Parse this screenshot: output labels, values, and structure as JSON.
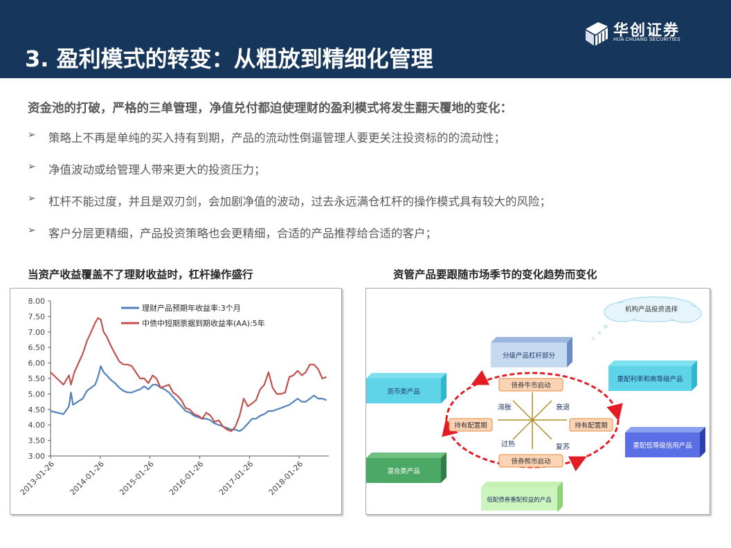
{
  "header": {
    "title": "3. 盈利模式的转变：从粗放到精细化管理",
    "logo_cn": "华创证券",
    "logo_en": "HUA CHUANG SECURITIES",
    "bg_color": "#16365c"
  },
  "intro": "资金池的打破，严格的三单管理，净值兑付都迫使理财的盈利模式将发生翻天覆地的变化：",
  "bullet_marker": "➢",
  "bullets": [
    "策略上不再是单纯的买入持有到期，产品的流动性倒逼管理人要更关注投资标的的流动性；",
    "净值波动或给管理人带来更大的投资压力；",
    "杠杆不能过度，并且是双刃剑，会加剧净值的波动，过去永远满仓杠杆的操作模式具有较大的风险；",
    "客户分层更精细，产品投资策略也会更精细，合适的产品推荐给合适的客户；"
  ],
  "left_panel_title": "当资产收益覆盖不了理财收益时，杠杆操作盛行",
  "right_panel_title": "资管产品要跟随市场季节的变化趋势而变化",
  "chart_data": {
    "type": "line",
    "title": "",
    "ylim": [
      3.0,
      8.0
    ],
    "y_ticks": [
      "8.00",
      "7.50",
      "7.00",
      "6.50",
      "6.00",
      "5.50",
      "5.00",
      "4.50",
      "4.00",
      "3.50",
      "3.00"
    ],
    "x_ticks": [
      "2013-01-26",
      "2014-01-26",
      "2015-01-26",
      "2016-01-26",
      "2017-01-26",
      "2018-01-26"
    ],
    "x_range": [
      "2013-01-26",
      "2018-09-01"
    ],
    "legend_position": "top-left",
    "grid": false,
    "series": [
      {
        "name": "理财产品预期年收益率:3个月",
        "color": "#4f81bd",
        "x": [
          "2013-01-26",
          "2013-03-15",
          "2013-05-01",
          "2013-06-10",
          "2013-06-25",
          "2013-07-10",
          "2013-08-15",
          "2013-09-20",
          "2013-10-20",
          "2013-11-20",
          "2013-12-20",
          "2014-01-10",
          "2014-01-30",
          "2014-02-20",
          "2014-03-15",
          "2014-04-15",
          "2014-05-15",
          "2014-06-15",
          "2014-07-15",
          "2014-08-15",
          "2014-09-15",
          "2014-10-15",
          "2014-11-15",
          "2014-12-15",
          "2015-01-15",
          "2015-02-15",
          "2015-03-15",
          "2015-04-15",
          "2015-05-15",
          "2015-06-15",
          "2015-07-15",
          "2015-08-15",
          "2015-09-15",
          "2015-10-15",
          "2015-11-15",
          "2015-12-15",
          "2016-01-15",
          "2016-02-15",
          "2016-03-15",
          "2016-04-15",
          "2016-05-15",
          "2016-06-15",
          "2016-07-15",
          "2016-08-15",
          "2016-09-15",
          "2016-10-15",
          "2016-11-15",
          "2016-12-15",
          "2017-01-15",
          "2017-02-15",
          "2017-03-15",
          "2017-04-15",
          "2017-05-15",
          "2017-06-15",
          "2017-07-15",
          "2017-08-15",
          "2017-09-15",
          "2017-10-15",
          "2017-11-15",
          "2017-12-15",
          "2018-01-15",
          "2018-02-15",
          "2018-03-15",
          "2018-04-15",
          "2018-05-15",
          "2018-06-15",
          "2018-07-15",
          "2018-08-15"
        ],
        "y": [
          4.45,
          4.4,
          4.35,
          4.6,
          5.05,
          4.65,
          4.75,
          4.85,
          5.1,
          5.2,
          5.3,
          5.55,
          5.9,
          5.7,
          5.6,
          5.45,
          5.35,
          5.2,
          5.1,
          5.05,
          5.05,
          5.1,
          5.15,
          5.25,
          5.15,
          5.3,
          5.3,
          5.2,
          5.15,
          5.05,
          4.9,
          4.75,
          4.6,
          4.45,
          4.4,
          4.3,
          4.25,
          4.2,
          4.2,
          4.15,
          4.05,
          4.0,
          3.95,
          3.9,
          3.85,
          3.85,
          3.8,
          3.9,
          4.05,
          4.2,
          4.2,
          4.3,
          4.35,
          4.45,
          4.45,
          4.5,
          4.55,
          4.6,
          4.65,
          4.75,
          4.85,
          4.75,
          4.75,
          4.85,
          4.95,
          4.85,
          4.85,
          4.8
        ]
      },
      {
        "name": "中债中短期票据到期收益率(AA):5年",
        "color": "#c0504d",
        "x": [
          "2013-01-26",
          "2013-03-15",
          "2013-05-01",
          "2013-06-10",
          "2013-06-25",
          "2013-07-20",
          "2013-08-20",
          "2013-09-20",
          "2013-10-20",
          "2013-11-20",
          "2013-12-20",
          "2014-01-10",
          "2014-01-30",
          "2014-02-20",
          "2014-03-15",
          "2014-04-15",
          "2014-05-15",
          "2014-06-15",
          "2014-07-15",
          "2014-08-15",
          "2014-09-15",
          "2014-10-15",
          "2014-11-15",
          "2014-12-15",
          "2015-01-15",
          "2015-02-15",
          "2015-03-15",
          "2015-04-15",
          "2015-05-15",
          "2015-06-15",
          "2015-07-15",
          "2015-08-15",
          "2015-09-15",
          "2015-10-15",
          "2015-11-15",
          "2015-12-15",
          "2016-01-15",
          "2016-02-15",
          "2016-03-15",
          "2016-04-15",
          "2016-05-15",
          "2016-06-15",
          "2016-07-15",
          "2016-08-15",
          "2016-09-15",
          "2016-10-15",
          "2016-11-15",
          "2016-12-15",
          "2017-01-15",
          "2017-02-15",
          "2017-03-15",
          "2017-04-15",
          "2017-05-15",
          "2017-06-15",
          "2017-07-15",
          "2017-08-15",
          "2017-09-15",
          "2017-10-15",
          "2017-11-15",
          "2017-12-15",
          "2018-01-15",
          "2018-02-15",
          "2018-03-15",
          "2018-04-15",
          "2018-05-15",
          "2018-06-15",
          "2018-07-15",
          "2018-08-15"
        ],
        "y": [
          5.7,
          5.5,
          5.3,
          5.6,
          5.3,
          5.7,
          6.0,
          6.3,
          6.7,
          7.0,
          7.3,
          7.45,
          7.4,
          7.0,
          6.85,
          6.55,
          6.3,
          6.05,
          5.95,
          5.95,
          5.9,
          5.7,
          5.5,
          5.5,
          5.35,
          5.6,
          5.5,
          5.2,
          5.25,
          5.3,
          5.05,
          4.95,
          4.8,
          4.55,
          4.5,
          4.35,
          4.3,
          4.2,
          4.4,
          4.3,
          4.1,
          4.15,
          3.95,
          3.85,
          3.8,
          3.95,
          4.3,
          4.85,
          4.6,
          4.7,
          4.8,
          5.15,
          5.3,
          5.7,
          5.2,
          5.0,
          5.0,
          5.05,
          5.55,
          5.6,
          5.75,
          5.6,
          5.7,
          5.95,
          5.95,
          5.8,
          5.5,
          5.55
        ]
      }
    ]
  },
  "diagram": {
    "cloud_label": "机构产品投资选择",
    "boxes": {
      "grading": "分级产品杠杆部分",
      "money_market": "货币类产品",
      "high_grade": "重配利率和高等级产品",
      "low_grade_credit": "重配低等级信用产品",
      "mixed": "混合类产品",
      "low_weight_bond": "低配债券重配权益的产品"
    },
    "cycle": {
      "bull": "债券牛市启动",
      "bear": "债券熊市启动",
      "hold_left": "持有配置期",
      "hold_right": "持有配置期",
      "stagflation": "滞胀",
      "recession": "衰退",
      "overheat": "过热",
      "recovery": "复苏"
    }
  }
}
